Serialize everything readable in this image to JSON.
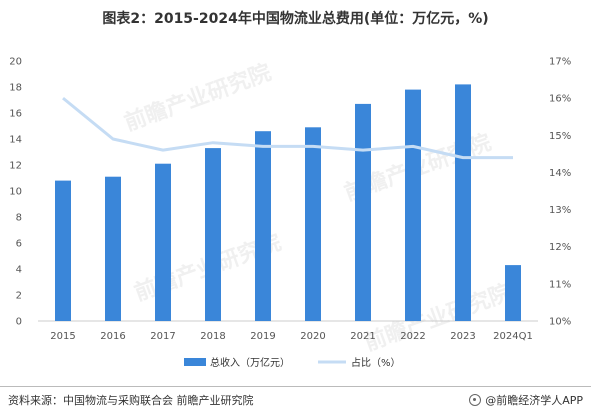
{
  "title": "图表2：2015-2024年中国物流业总费用(单位：万亿元，%)",
  "chart_data": {
    "type": "bar+line",
    "categories": [
      "2015",
      "2016",
      "2017",
      "2018",
      "2019",
      "2020",
      "2021",
      "2022",
      "2023",
      "2024Q1"
    ],
    "series": [
      {
        "name": "总收入（万亿元）",
        "type": "bar",
        "axis": "left",
        "color": "#3a86d9",
        "values": [
          10.8,
          11.1,
          12.1,
          13.3,
          14.6,
          14.9,
          16.7,
          17.8,
          18.2,
          4.3
        ]
      },
      {
        "name": "占比（%）",
        "type": "line",
        "axis": "right",
        "color": "#c5dcf4",
        "values": [
          16.0,
          14.9,
          14.6,
          14.8,
          14.7,
          14.7,
          14.6,
          14.7,
          14.4,
          14.4
        ]
      }
    ],
    "y_left": {
      "ticks": [
        "0",
        "2",
        "4",
        "6",
        "8",
        "10",
        "12",
        "14",
        "16",
        "18",
        "20"
      ],
      "min": 0,
      "max": 20
    },
    "y_right": {
      "ticks": [
        "10%",
        "11%",
        "12%",
        "13%",
        "14%",
        "15%",
        "16%",
        "17%"
      ],
      "min": 10,
      "max": 17
    },
    "legend_position": "bottom-center",
    "grid": false
  },
  "watermark": "前瞻产业研究院",
  "footer": {
    "source": "资料来源：中国物流与采购联合会 前瞻产业研究院",
    "brand": "@前瞻经济学人APP"
  }
}
